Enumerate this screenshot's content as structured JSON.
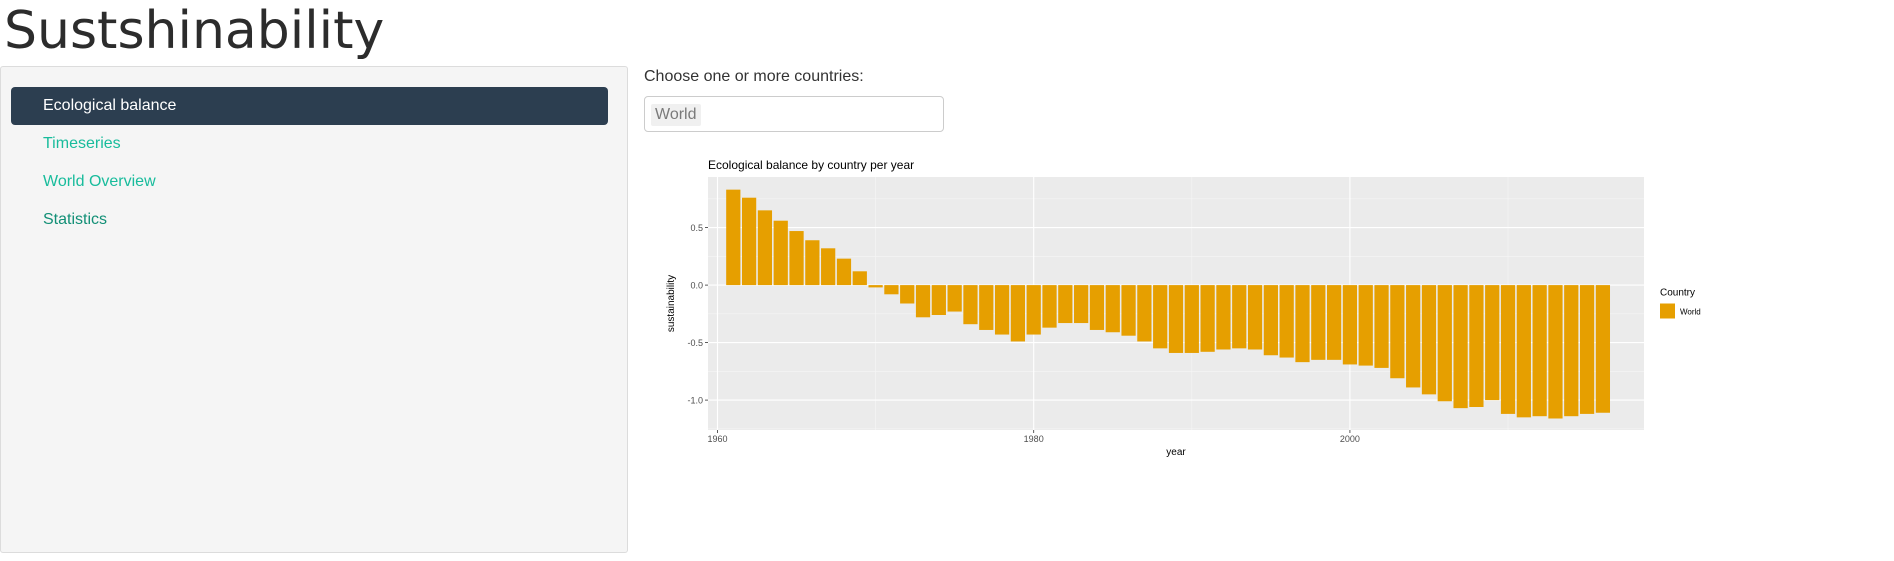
{
  "app": {
    "title": "Sustshinability"
  },
  "sidebar": {
    "items": [
      {
        "label": "Ecological balance",
        "active": true
      },
      {
        "label": "Timeseries",
        "active": false
      },
      {
        "label": "World Overview",
        "active": false
      },
      {
        "label": "Statistics",
        "active": false
      }
    ]
  },
  "country_select": {
    "label": "Choose one or more countries:",
    "selected": [
      "World"
    ]
  },
  "colors": {
    "bar": "#E69F00",
    "panel_bg": "#EBEBEB",
    "nav_active": "#2C3E50",
    "nav_link": "#18BC9C"
  },
  "chart_data": {
    "type": "bar",
    "title": "Ecological balance by country per year",
    "xlabel": "year",
    "ylabel": "sustainability",
    "xlim": [
      1959.4,
      2018.6
    ],
    "ylim": [
      -1.26,
      0.94
    ],
    "xticks": [
      1960,
      1980,
      2000
    ],
    "yticks": [
      0.5,
      0.0,
      -0.5,
      -1.0
    ],
    "ytick_labels": [
      "0.5",
      "0.0",
      "-0.5",
      "-1.0"
    ],
    "grid": true,
    "legend": {
      "title": "Country",
      "entries": [
        "World"
      ],
      "position": "right"
    },
    "series": [
      {
        "name": "World",
        "x": [
          1961,
          1962,
          1963,
          1964,
          1965,
          1966,
          1967,
          1968,
          1969,
          1970,
          1971,
          1972,
          1973,
          1974,
          1975,
          1976,
          1977,
          1978,
          1979,
          1980,
          1981,
          1982,
          1983,
          1984,
          1985,
          1986,
          1987,
          1988,
          1989,
          1990,
          1991,
          1992,
          1993,
          1994,
          1995,
          1996,
          1997,
          1998,
          1999,
          2000,
          2001,
          2002,
          2003,
          2004,
          2005,
          2006,
          2007,
          2008,
          2009,
          2010,
          2011,
          2012,
          2013,
          2014,
          2015,
          2016
        ],
        "values": [
          0.83,
          0.76,
          0.65,
          0.56,
          0.47,
          0.39,
          0.32,
          0.23,
          0.12,
          -0.02,
          -0.08,
          -0.16,
          -0.28,
          -0.26,
          -0.23,
          -0.34,
          -0.39,
          -0.43,
          -0.49,
          -0.43,
          -0.37,
          -0.33,
          -0.33,
          -0.39,
          -0.41,
          -0.44,
          -0.49,
          -0.55,
          -0.59,
          -0.59,
          -0.58,
          -0.56,
          -0.55,
          -0.56,
          -0.61,
          -0.63,
          -0.67,
          -0.65,
          -0.65,
          -0.69,
          -0.7,
          -0.72,
          -0.81,
          -0.89,
          -0.95,
          -1.01,
          -1.07,
          -1.06,
          -1.0,
          -1.12,
          -1.15,
          -1.14,
          -1.16,
          -1.14,
          -1.12,
          -1.11
        ]
      }
    ]
  }
}
